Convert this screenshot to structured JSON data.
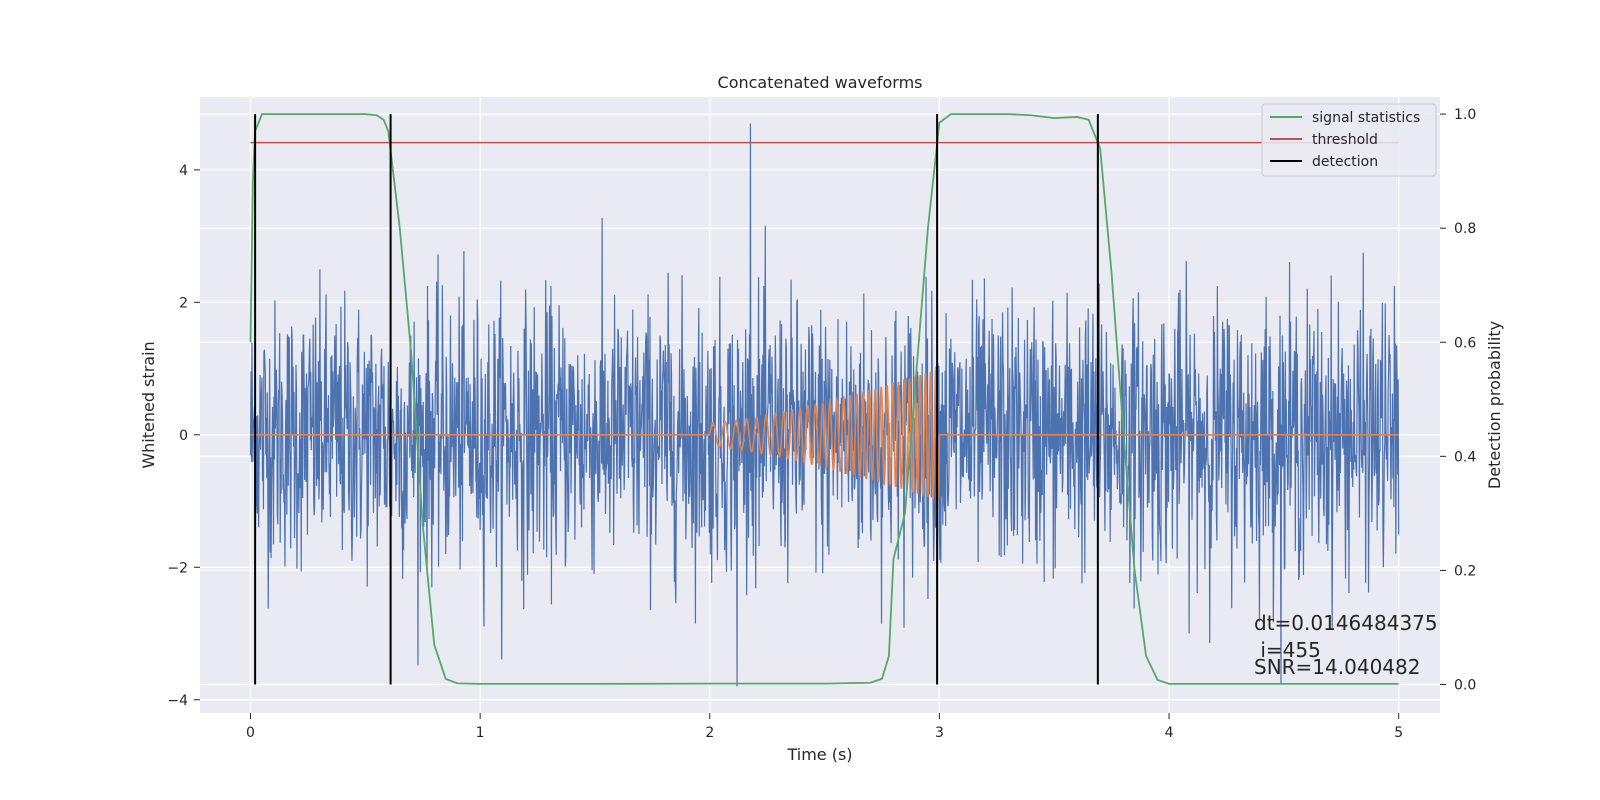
{
  "chart_data": {
    "type": "line",
    "title": "Concatenated waveforms",
    "xlabel": "Time (s)",
    "ylabel": "Whitened strain",
    "ylabel_right": "Detection probability",
    "xlim": [
      -0.22,
      5.18
    ],
    "ylim": [
      -4.2,
      5.1
    ],
    "ylim_right": [
      -0.05,
      1.03
    ],
    "x_ticks": [
      0,
      1,
      2,
      3,
      4,
      5
    ],
    "y_ticks": [
      -4,
      -2,
      0,
      2,
      4
    ],
    "y_ticks_right": [
      0.0,
      0.2,
      0.4,
      0.6,
      0.8,
      1.0
    ],
    "y_tick_labels": [
      "−4",
      "−2",
      "0",
      "2",
      "4"
    ],
    "y_tick_labels_right": [
      "0.0",
      "0.2",
      "0.4",
      "0.6",
      "0.8",
      "1.0"
    ],
    "grid": true,
    "legend_position": "top-right",
    "series": [
      {
        "name": "",
        "axis": "left",
        "kind": "whitened-strain-noise",
        "color": "#4c72b0",
        "x_range": [
          0,
          5
        ],
        "amplitude_typical": 1.0,
        "min": -3.8,
        "max": 4.7
      },
      {
        "name": "",
        "axis": "left",
        "kind": "injected-chirp",
        "color": "#dd8452",
        "x_range": [
          0,
          5
        ],
        "chirp_x_range": [
          2.0,
          3.0
        ],
        "chirp_peak_amplitude": 1.0
      },
      {
        "name": "signal statistics",
        "axis": "right",
        "color": "#55a868",
        "x": [
          0,
          0.01,
          0.02,
          0.05,
          0.1,
          0.2,
          0.3,
          0.4,
          0.5,
          0.55,
          0.58,
          0.6,
          0.65,
          0.7,
          0.75,
          0.8,
          0.85,
          0.9,
          1.0,
          1.5,
          2.0,
          2.5,
          2.7,
          2.75,
          2.78,
          2.8,
          2.85,
          2.9,
          2.95,
          3.0,
          3.05,
          3.1,
          3.2,
          3.3,
          3.4,
          3.5,
          3.6,
          3.65,
          3.7,
          3.75,
          3.8,
          3.85,
          3.9,
          3.95,
          4.0,
          4.5,
          5.0
        ],
        "values": [
          0.6,
          0.88,
          0.97,
          1.0,
          1.0,
          1.0,
          1.0,
          1.0,
          1.0,
          0.998,
          0.99,
          0.97,
          0.8,
          0.58,
          0.28,
          0.07,
          0.01,
          0.002,
          0.001,
          0.001,
          0.0015,
          0.0015,
          0.003,
          0.01,
          0.05,
          0.22,
          0.3,
          0.55,
          0.8,
          0.985,
          1.0,
          1.0,
          1.0,
          1.0,
          0.998,
          0.993,
          0.995,
          0.99,
          0.94,
          0.72,
          0.45,
          0.2,
          0.05,
          0.008,
          0.001,
          0.001,
          0.001
        ]
      },
      {
        "name": "threshold",
        "axis": "right",
        "color": "#c44e52",
        "x": [
          0,
          5
        ],
        "values": [
          0.95,
          0.95
        ]
      },
      {
        "name": "detection",
        "axis": "right",
        "color": "#000000",
        "kind": "vertical-lines",
        "x": [
          0.02,
          0.61,
          2.99,
          3.69
        ],
        "y_range": [
          0.0,
          1.0
        ]
      }
    ],
    "annotations": [
      "dt=0.0146484375",
      " i=455",
      "SNR=14.040482"
    ]
  }
}
